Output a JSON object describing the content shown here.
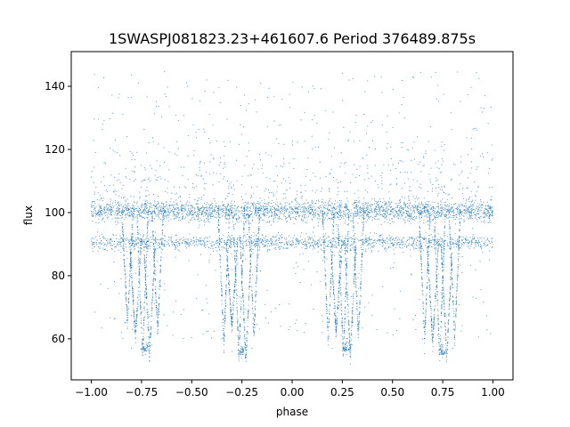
{
  "chart_data": {
    "type": "scatter",
    "title": "1SWASPJ081823.23+461607.6 Period 376489.875s",
    "xlabel": "phase",
    "ylabel": "flux",
    "xlim": [
      -1.1,
      1.1
    ],
    "ylim": [
      47,
      151
    ],
    "xticks": [
      -1.0,
      -0.75,
      -0.5,
      -0.25,
      0.0,
      0.25,
      0.5,
      0.75,
      1.0
    ],
    "xtick_labels": [
      "−1.00",
      "−0.75",
      "−0.50",
      "−0.25",
      "0.00",
      "0.25",
      "0.50",
      "0.75",
      "1.00"
    ],
    "yticks": [
      60,
      80,
      100,
      120,
      140
    ],
    "ytick_labels": [
      "60",
      "80",
      "100",
      "120",
      "140"
    ],
    "grid": false,
    "marker_color": "#1f77b4",
    "series": [
      {
        "bands": [
          {
            "level": 100.5,
            "spread": 1.6,
            "x_range": [
              -1.0,
              1.0
            ],
            "density": 2600
          },
          {
            "level": 90.5,
            "spread": 1.2,
            "x_range": [
              -1.0,
              1.0
            ],
            "density": 1400
          }
        ],
        "eclipses": [
          {
            "center": -0.73,
            "min": 55,
            "width": 0.05
          },
          {
            "center": -0.25,
            "min": 54,
            "width": 0.05
          },
          {
            "center": 0.27,
            "min": 55,
            "width": 0.05
          },
          {
            "center": 0.75,
            "min": 54,
            "width": 0.05
          }
        ],
        "x": [
          -0.85,
          -0.8,
          -0.73,
          -0.7,
          -0.35,
          -0.3,
          -0.25,
          -0.2,
          0.15,
          0.2,
          0.27,
          0.3,
          0.65,
          0.7,
          0.75,
          0.8
        ],
        "y": [
          62,
          57,
          55,
          58,
          60,
          56,
          54,
          57,
          62,
          57,
          55,
          58,
          60,
          56,
          54,
          57
        ]
      }
    ]
  }
}
